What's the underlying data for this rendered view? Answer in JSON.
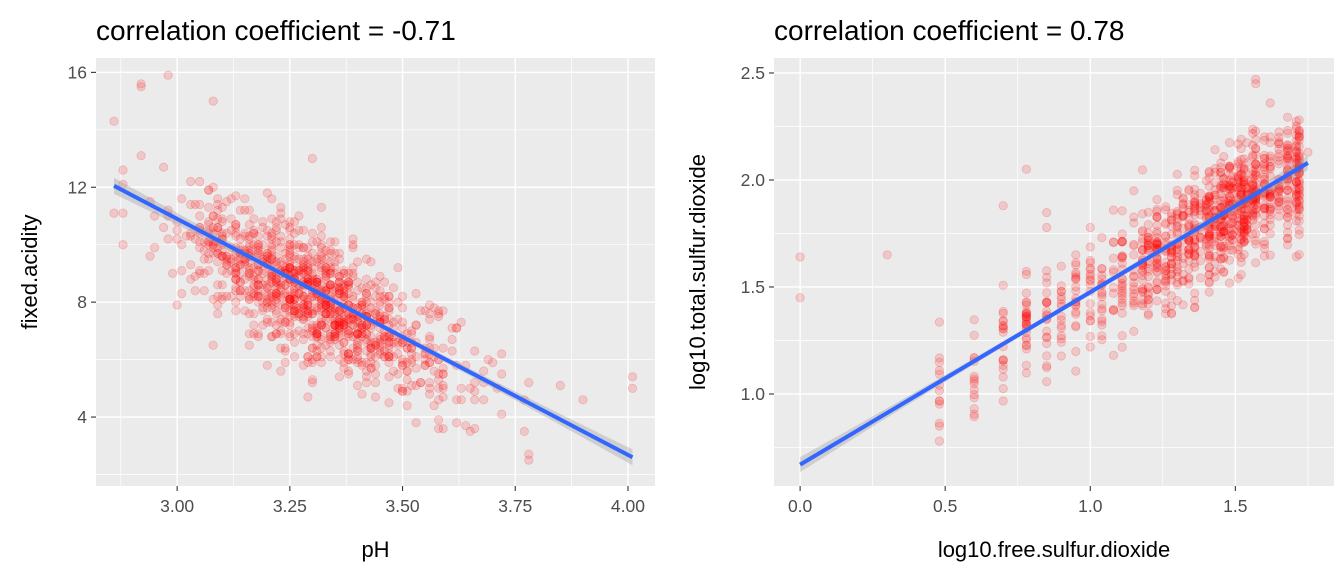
{
  "chart_data": [
    {
      "type": "scatter",
      "title": "correlation coefficient = -0.71",
      "xlabel": "pH",
      "ylabel": "fixed.acidity",
      "xlim": [
        2.82,
        4.06
      ],
      "ylim": [
        1.6,
        16.5
      ],
      "xticks": [
        3.0,
        3.25,
        3.5,
        3.75,
        4.0
      ],
      "xtick_labels": [
        "3.00",
        "3.25",
        "3.50",
        "3.75",
        "4.00"
      ],
      "yticks": [
        4,
        8,
        12,
        16
      ],
      "ytick_labels": [
        "4",
        "8",
        "12",
        "16"
      ],
      "grid": true,
      "point_color": "#ff0000",
      "point_alpha": 0.15,
      "fit_color": "#3366ff",
      "fit_band_color": "#999999",
      "fit_line": {
        "x": [
          2.86,
          4.01
        ],
        "y": [
          12.05,
          2.6
        ]
      },
      "highlight_points": [
        {
          "x": 2.86,
          "y": 14.3
        },
        {
          "x": 2.92,
          "y": 15.6
        },
        {
          "x": 2.92,
          "y": 15.5
        },
        {
          "x": 2.98,
          "y": 15.9
        },
        {
          "x": 3.08,
          "y": 15.0
        },
        {
          "x": 2.88,
          "y": 12.6
        },
        {
          "x": 2.88,
          "y": 10.0
        },
        {
          "x": 2.95,
          "y": 9.9
        },
        {
          "x": 3.0,
          "y": 7.9
        },
        {
          "x": 3.3,
          "y": 13.0
        },
        {
          "x": 3.85,
          "y": 5.1
        },
        {
          "x": 3.9,
          "y": 4.6
        },
        {
          "x": 4.01,
          "y": 5.4
        },
        {
          "x": 4.01,
          "y": 5.0
        },
        {
          "x": 3.78,
          "y": 5.2
        },
        {
          "x": 3.72,
          "y": 5.5
        },
        {
          "x": 3.66,
          "y": 6.3
        },
        {
          "x": 3.62,
          "y": 7.1
        },
        {
          "x": 3.5,
          "y": 4.9
        },
        {
          "x": 3.08,
          "y": 6.5
        }
      ],
      "cloud": {
        "count": 1100,
        "seed": 7,
        "x_mean": 3.31,
        "x_sd": 0.15,
        "slope": -8.2,
        "intercept": 35.2,
        "noise_sd": 1.1
      }
    },
    {
      "type": "scatter",
      "title": "correlation coefficient = 0.78",
      "xlabel": "log10.free.sulfur.dioxide",
      "ylabel": "log10.total.sulfur.dioxide",
      "xlim": [
        -0.09,
        1.84
      ],
      "ylim": [
        0.57,
        2.57
      ],
      "xticks": [
        0.0,
        0.5,
        1.0,
        1.5
      ],
      "xtick_labels": [
        "0.0",
        "0.5",
        "1.0",
        "1.5"
      ],
      "yticks": [
        1.0,
        1.5,
        2.0,
        2.5
      ],
      "ytick_labels": [
        "1.0",
        "1.5",
        "2.0",
        "2.5"
      ],
      "grid": true,
      "point_color": "#ff0000",
      "point_alpha": 0.15,
      "fit_color": "#3366ff",
      "fit_band_color": "#999999",
      "fit_line": {
        "x": [
          0.0,
          1.75
        ],
        "y": [
          0.67,
          2.08
        ]
      },
      "highlight_points": [
        {
          "x": 0.0,
          "y": 1.64
        },
        {
          "x": 0.0,
          "y": 1.45
        },
        {
          "x": 0.3,
          "y": 1.65
        },
        {
          "x": 0.48,
          "y": 0.78
        },
        {
          "x": 0.48,
          "y": 0.85
        },
        {
          "x": 0.7,
          "y": 1.88
        },
        {
          "x": 0.78,
          "y": 2.05
        },
        {
          "x": 1.57,
          "y": 2.47
        },
        {
          "x": 1.57,
          "y": 2.45
        },
        {
          "x": 1.75,
          "y": 2.13
        },
        {
          "x": 1.6,
          "y": 1.68
        }
      ],
      "discrete_x": [
        0.48,
        0.6,
        0.7,
        0.78,
        0.85,
        0.9,
        0.95,
        1.0,
        1.04,
        1.08,
        1.11,
        1.15,
        1.18,
        1.2,
        1.23,
        1.26,
        1.28,
        1.3,
        1.32,
        1.34,
        1.36,
        1.38,
        1.4,
        1.41,
        1.43,
        1.45,
        1.46,
        1.48,
        1.49,
        1.51,
        1.52,
        1.53,
        1.54,
        1.56,
        1.57,
        1.6,
        1.62,
        1.65,
        1.68,
        1.71,
        1.72
      ],
      "cloud": {
        "count": 1100,
        "seed": 11,
        "slope": 0.8,
        "intercept": 0.67,
        "noise_sd": 0.14
      }
    }
  ]
}
